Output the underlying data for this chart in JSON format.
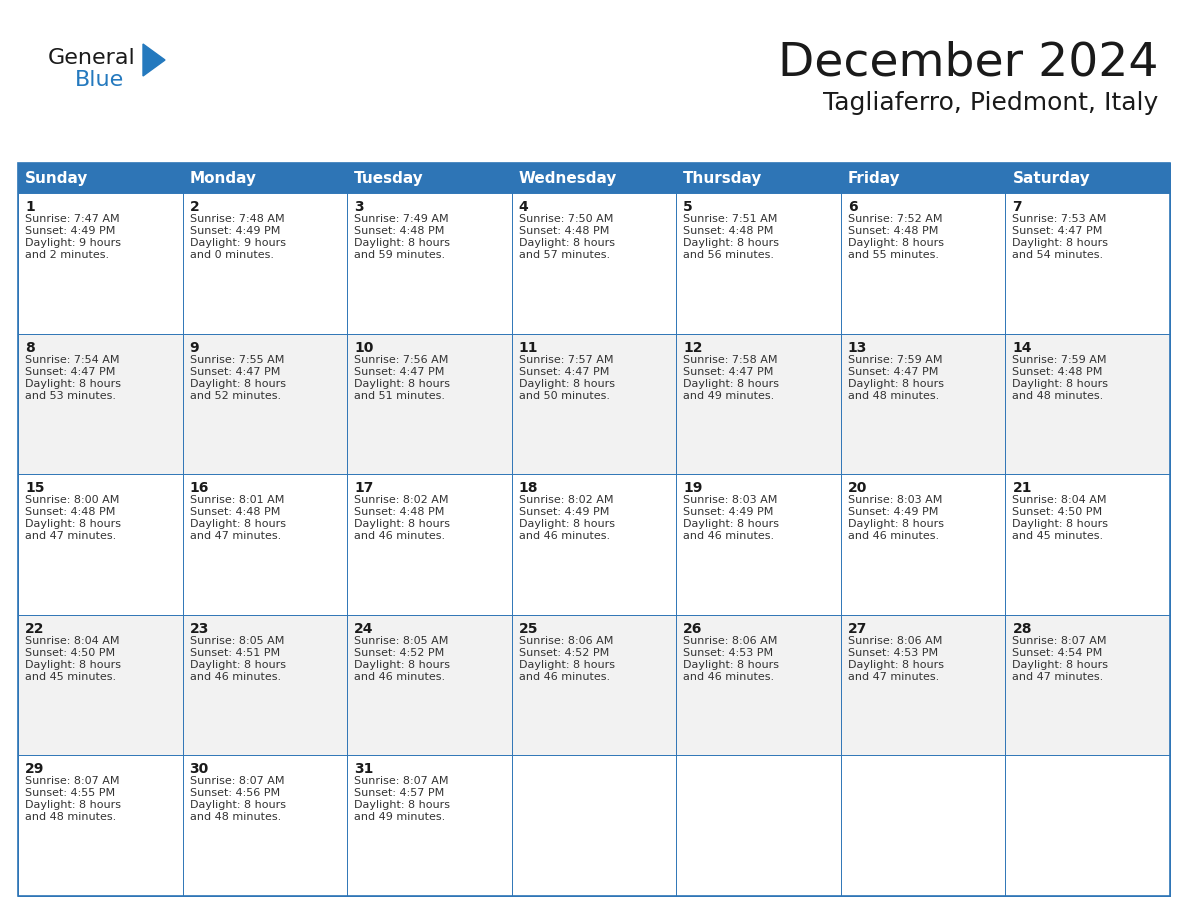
{
  "title": "December 2024",
  "subtitle": "Tagliaferro, Piedmont, Italy",
  "header_bg": "#2E75B6",
  "header_text": "#FFFFFF",
  "days_of_week": [
    "Sunday",
    "Monday",
    "Tuesday",
    "Wednesday",
    "Thursday",
    "Friday",
    "Saturday"
  ],
  "weeks": [
    [
      {
        "day": 1,
        "sunrise": "7:47 AM",
        "sunset": "4:49 PM",
        "daylight_h": "9 hours",
        "daylight_m": "and 2 minutes."
      },
      {
        "day": 2,
        "sunrise": "7:48 AM",
        "sunset": "4:49 PM",
        "daylight_h": "9 hours",
        "daylight_m": "and 0 minutes."
      },
      {
        "day": 3,
        "sunrise": "7:49 AM",
        "sunset": "4:48 PM",
        "daylight_h": "8 hours",
        "daylight_m": "and 59 minutes."
      },
      {
        "day": 4,
        "sunrise": "7:50 AM",
        "sunset": "4:48 PM",
        "daylight_h": "8 hours",
        "daylight_m": "and 57 minutes."
      },
      {
        "day": 5,
        "sunrise": "7:51 AM",
        "sunset": "4:48 PM",
        "daylight_h": "8 hours",
        "daylight_m": "and 56 minutes."
      },
      {
        "day": 6,
        "sunrise": "7:52 AM",
        "sunset": "4:48 PM",
        "daylight_h": "8 hours",
        "daylight_m": "and 55 minutes."
      },
      {
        "day": 7,
        "sunrise": "7:53 AM",
        "sunset": "4:47 PM",
        "daylight_h": "8 hours",
        "daylight_m": "and 54 minutes."
      }
    ],
    [
      {
        "day": 8,
        "sunrise": "7:54 AM",
        "sunset": "4:47 PM",
        "daylight_h": "8 hours",
        "daylight_m": "and 53 minutes."
      },
      {
        "day": 9,
        "sunrise": "7:55 AM",
        "sunset": "4:47 PM",
        "daylight_h": "8 hours",
        "daylight_m": "and 52 minutes."
      },
      {
        "day": 10,
        "sunrise": "7:56 AM",
        "sunset": "4:47 PM",
        "daylight_h": "8 hours",
        "daylight_m": "and 51 minutes."
      },
      {
        "day": 11,
        "sunrise": "7:57 AM",
        "sunset": "4:47 PM",
        "daylight_h": "8 hours",
        "daylight_m": "and 50 minutes."
      },
      {
        "day": 12,
        "sunrise": "7:58 AM",
        "sunset": "4:47 PM",
        "daylight_h": "8 hours",
        "daylight_m": "and 49 minutes."
      },
      {
        "day": 13,
        "sunrise": "7:59 AM",
        "sunset": "4:47 PM",
        "daylight_h": "8 hours",
        "daylight_m": "and 48 minutes."
      },
      {
        "day": 14,
        "sunrise": "7:59 AM",
        "sunset": "4:48 PM",
        "daylight_h": "8 hours",
        "daylight_m": "and 48 minutes."
      }
    ],
    [
      {
        "day": 15,
        "sunrise": "8:00 AM",
        "sunset": "4:48 PM",
        "daylight_h": "8 hours",
        "daylight_m": "and 47 minutes."
      },
      {
        "day": 16,
        "sunrise": "8:01 AM",
        "sunset": "4:48 PM",
        "daylight_h": "8 hours",
        "daylight_m": "and 47 minutes."
      },
      {
        "day": 17,
        "sunrise": "8:02 AM",
        "sunset": "4:48 PM",
        "daylight_h": "8 hours",
        "daylight_m": "and 46 minutes."
      },
      {
        "day": 18,
        "sunrise": "8:02 AM",
        "sunset": "4:49 PM",
        "daylight_h": "8 hours",
        "daylight_m": "and 46 minutes."
      },
      {
        "day": 19,
        "sunrise": "8:03 AM",
        "sunset": "4:49 PM",
        "daylight_h": "8 hours",
        "daylight_m": "and 46 minutes."
      },
      {
        "day": 20,
        "sunrise": "8:03 AM",
        "sunset": "4:49 PM",
        "daylight_h": "8 hours",
        "daylight_m": "and 46 minutes."
      },
      {
        "day": 21,
        "sunrise": "8:04 AM",
        "sunset": "4:50 PM",
        "daylight_h": "8 hours",
        "daylight_m": "and 45 minutes."
      }
    ],
    [
      {
        "day": 22,
        "sunrise": "8:04 AM",
        "sunset": "4:50 PM",
        "daylight_h": "8 hours",
        "daylight_m": "and 45 minutes."
      },
      {
        "day": 23,
        "sunrise": "8:05 AM",
        "sunset": "4:51 PM",
        "daylight_h": "8 hours",
        "daylight_m": "and 46 minutes."
      },
      {
        "day": 24,
        "sunrise": "8:05 AM",
        "sunset": "4:52 PM",
        "daylight_h": "8 hours",
        "daylight_m": "and 46 minutes."
      },
      {
        "day": 25,
        "sunrise": "8:06 AM",
        "sunset": "4:52 PM",
        "daylight_h": "8 hours",
        "daylight_m": "and 46 minutes."
      },
      {
        "day": 26,
        "sunrise": "8:06 AM",
        "sunset": "4:53 PM",
        "daylight_h": "8 hours",
        "daylight_m": "and 46 minutes."
      },
      {
        "day": 27,
        "sunrise": "8:06 AM",
        "sunset": "4:53 PM",
        "daylight_h": "8 hours",
        "daylight_m": "and 47 minutes."
      },
      {
        "day": 28,
        "sunrise": "8:07 AM",
        "sunset": "4:54 PM",
        "daylight_h": "8 hours",
        "daylight_m": "and 47 minutes."
      }
    ],
    [
      {
        "day": 29,
        "sunrise": "8:07 AM",
        "sunset": "4:55 PM",
        "daylight_h": "8 hours",
        "daylight_m": "and 48 minutes."
      },
      {
        "day": 30,
        "sunrise": "8:07 AM",
        "sunset": "4:56 PM",
        "daylight_h": "8 hours",
        "daylight_m": "and 48 minutes."
      },
      {
        "day": 31,
        "sunrise": "8:07 AM",
        "sunset": "4:57 PM",
        "daylight_h": "8 hours",
        "daylight_m": "and 49 minutes."
      },
      null,
      null,
      null,
      null
    ]
  ],
  "cell_border_color": "#2E75B6",
  "cell_bg_white": "#FFFFFF",
  "cell_bg_gray": "#F2F2F2",
  "title_font_size": 34,
  "subtitle_font_size": 18,
  "header_font_size": 11,
  "day_num_font_size": 10,
  "cell_text_font_size": 8,
  "logo_color_general": "#1a1a1a",
  "logo_color_blue": "#2479BE",
  "logo_triangle_color": "#2479BE"
}
